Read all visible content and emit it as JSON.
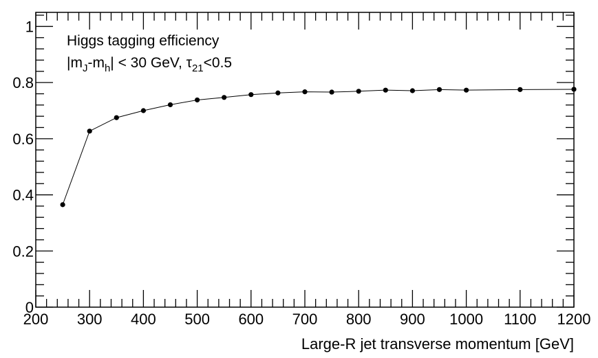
{
  "chart_data": {
    "type": "scatter",
    "title": "",
    "xlabel": "Large-R jet transverse momentum [GeV]",
    "ylabel": "",
    "xlim": [
      200,
      1200
    ],
    "ylim": [
      0,
      1.05
    ],
    "xticks": [
      200,
      300,
      400,
      500,
      600,
      700,
      800,
      900,
      1000,
      1100,
      1200
    ],
    "yticks": [
      0,
      0.2,
      0.4,
      0.6,
      0.8,
      1
    ],
    "xtick_labels": [
      "200",
      "300",
      "400",
      "500",
      "600",
      "700",
      "800",
      "900",
      "1000",
      "1100",
      "1200"
    ],
    "ytick_labels": [
      "0",
      "0.2",
      "0.4",
      "0.6",
      "0.8",
      "1"
    ],
    "grid": false,
    "connect_points": true,
    "annotation": {
      "line1": "Higgs tagging efficiency",
      "line2_parts": [
        "|m",
        "J",
        "-m",
        "h",
        "| < 30 GeV, ",
        "τ",
        "21",
        "<0.5"
      ]
    },
    "series": [
      {
        "x": [
          250,
          300,
          350,
          400,
          450,
          500,
          550,
          600,
          650,
          700,
          750,
          800,
          850,
          900,
          950,
          1000,
          1100,
          1200
        ],
        "y": [
          0.365,
          0.627,
          0.675,
          0.7,
          0.721,
          0.738,
          0.747,
          0.757,
          0.763,
          0.767,
          0.766,
          0.769,
          0.773,
          0.771,
          0.775,
          0.773,
          0.775,
          0.776
        ],
        "color": "#000000"
      }
    ]
  }
}
